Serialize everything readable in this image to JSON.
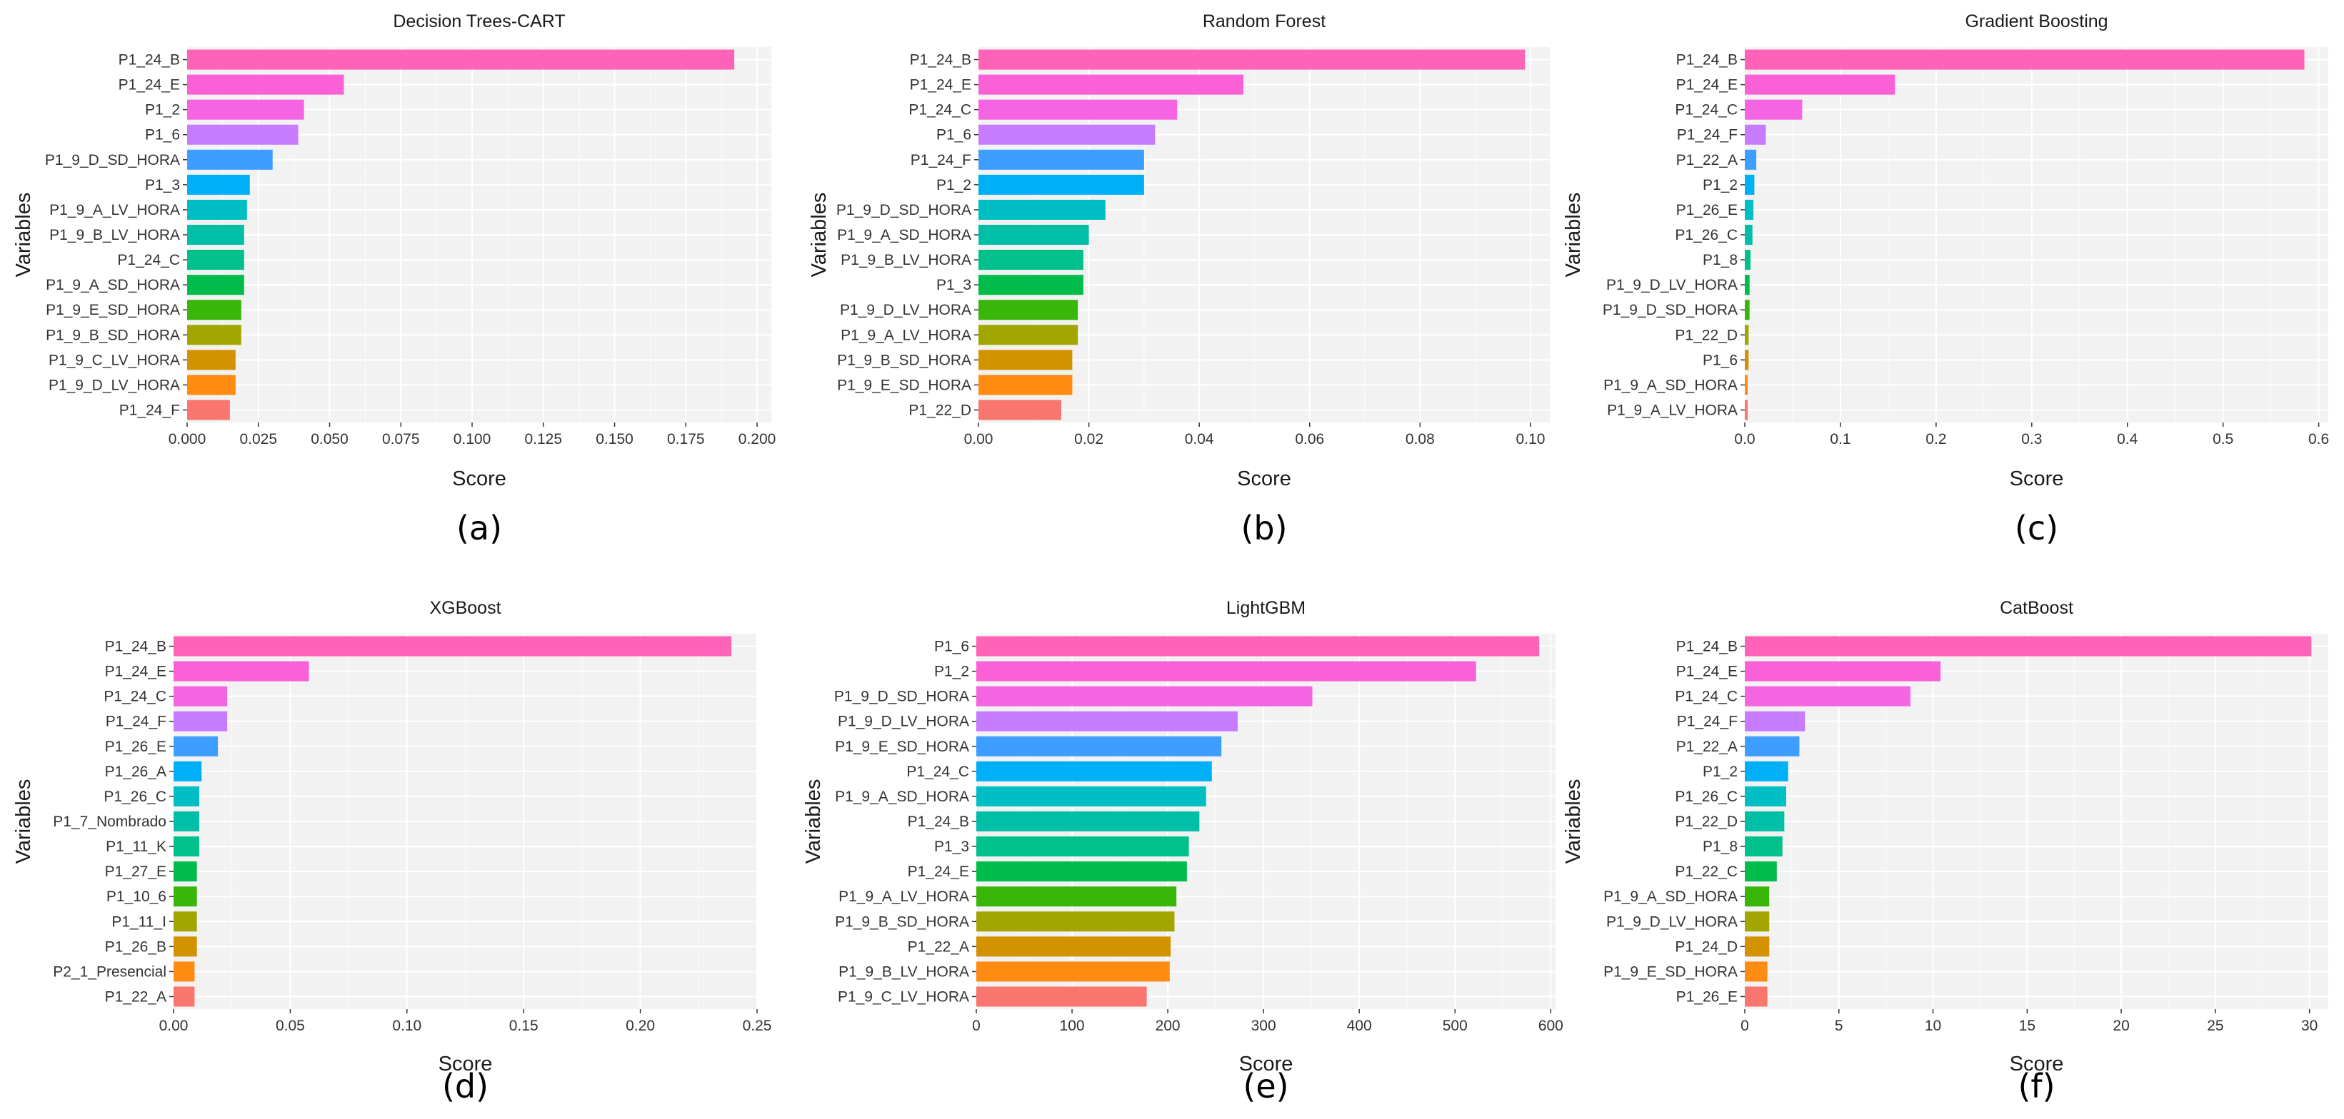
{
  "colors": [
    "#ff63b7",
    "#fb61d7",
    "#f564e3",
    "#c77cff",
    "#3e9eff",
    "#00b0f6",
    "#00bfc4",
    "#00bfa6",
    "#00c08b",
    "#00bc4a",
    "#3ab60b",
    "#a3a500",
    "#d39200",
    "#ff8b13",
    "#f8766d"
  ],
  "chart_data": [
    {
      "type": "bar",
      "orientation": "horizontal",
      "title": "Decision Trees-CART",
      "panel_label": "(a)",
      "xlabel": "Score",
      "ylabel": "Variables",
      "xlim": [
        0,
        0.205
      ],
      "xticks": [
        0,
        0.025,
        0.05,
        0.075,
        0.1,
        0.125,
        0.15,
        0.175,
        0.2
      ],
      "xtick_labels": [
        "0.000",
        "0.025",
        "0.050",
        "0.075",
        "0.100",
        "0.125",
        "0.150",
        "0.175",
        "0.200"
      ],
      "categories": [
        "P1_24_B",
        "P1_24_E",
        "P1_2",
        "P1_6",
        "P1_9_D_SD_HORA",
        "P1_3",
        "P1_9_A_LV_HORA",
        "P1_9_B_LV_HORA",
        "P1_24_C",
        "P1_9_A_SD_HORA",
        "P1_9_E_SD_HORA",
        "P1_9_B_SD_HORA",
        "P1_9_C_LV_HORA",
        "P1_9_D_LV_HORA",
        "P1_24_F"
      ],
      "values": [
        0.192,
        0.055,
        0.041,
        0.039,
        0.03,
        0.022,
        0.021,
        0.02,
        0.02,
        0.02,
        0.019,
        0.019,
        0.017,
        0.017,
        0.015
      ]
    },
    {
      "type": "bar",
      "orientation": "horizontal",
      "title": "Random Forest",
      "panel_label": "(b)",
      "xlabel": "Score",
      "ylabel": "Variables",
      "xlim": [
        0,
        0.1035
      ],
      "xticks": [
        0,
        0.02,
        0.04,
        0.06,
        0.08,
        0.1
      ],
      "xtick_labels": [
        "0.00",
        "0.02",
        "0.04",
        "0.06",
        "0.08",
        "0.10"
      ],
      "categories": [
        "P1_24_B",
        "P1_24_E",
        "P1_24_C",
        "P1_6",
        "P1_24_F",
        "P1_2",
        "P1_9_D_SD_HORA",
        "P1_9_A_SD_HORA",
        "P1_9_B_LV_HORA",
        "P1_3",
        "P1_9_D_LV_HORA",
        "P1_9_A_LV_HORA",
        "P1_9_B_SD_HORA",
        "P1_9_E_SD_HORA",
        "P1_22_D"
      ],
      "values": [
        0.099,
        0.048,
        0.036,
        0.032,
        0.03,
        0.03,
        0.023,
        0.02,
        0.019,
        0.019,
        0.018,
        0.018,
        0.017,
        0.017,
        0.015
      ]
    },
    {
      "type": "bar",
      "orientation": "horizontal",
      "title": "Gradient Boosting",
      "panel_label": "(c)",
      "xlabel": "Score",
      "ylabel": "Variables",
      "xlim": [
        0,
        0.61
      ],
      "xticks": [
        0,
        0.1,
        0.2,
        0.3,
        0.4,
        0.5,
        0.6
      ],
      "xtick_labels": [
        "0.0",
        "0.1",
        "0.2",
        "0.3",
        "0.4",
        "0.5",
        "0.6"
      ],
      "categories": [
        "P1_24_B",
        "P1_24_E",
        "P1_24_C",
        "P1_24_F",
        "P1_22_A",
        "P1_2",
        "P1_26_E",
        "P1_26_C",
        "P1_8",
        "P1_9_D_LV_HORA",
        "P1_9_D_SD_HORA",
        "P1_22_D",
        "P1_6",
        "P1_9_A_SD_HORA",
        "P1_9_A_LV_HORA"
      ],
      "values": [
        0.585,
        0.157,
        0.06,
        0.022,
        0.012,
        0.01,
        0.009,
        0.008,
        0.006,
        0.005,
        0.005,
        0.004,
        0.004,
        0.003,
        0.003
      ]
    },
    {
      "type": "bar",
      "orientation": "horizontal",
      "title": "XGBoost",
      "panel_label": "(d)",
      "xlabel": "Score",
      "ylabel": "Variables",
      "xlim": [
        0,
        0.25
      ],
      "xticks": [
        0,
        0.05,
        0.1,
        0.15,
        0.2,
        0.25
      ],
      "xtick_labels": [
        "0.00",
        "0.05",
        "0.10",
        "0.15",
        "0.20",
        "0.25"
      ],
      "categories": [
        "P1_24_B",
        "P1_24_E",
        "P1_24_C",
        "P1_24_F",
        "P1_26_E",
        "P1_26_A",
        "P1_26_C",
        "P1_7_Nombrado",
        "P1_11_K",
        "P1_27_E",
        "P1_10_6",
        "P1_11_I",
        "P1_26_B",
        "P2_1_Presencial",
        "P1_22_A"
      ],
      "values": [
        0.239,
        0.058,
        0.023,
        0.023,
        0.019,
        0.012,
        0.011,
        0.011,
        0.011,
        0.01,
        0.01,
        0.01,
        0.01,
        0.009,
        0.009
      ]
    },
    {
      "type": "bar",
      "orientation": "horizontal",
      "title": "LightGBM",
      "panel_label": "(e)",
      "xlabel": "Score",
      "ylabel": "Variables",
      "xlim": [
        0,
        605
      ],
      "xticks": [
        0,
        100,
        200,
        300,
        400,
        500,
        600
      ],
      "xtick_labels": [
        "0",
        "100",
        "200",
        "300",
        "400",
        "500",
        "600"
      ],
      "categories": [
        "P1_6",
        "P1_2",
        "P1_9_D_SD_HORA",
        "P1_9_D_LV_HORA",
        "P1_9_E_SD_HORA",
        "P1_24_C",
        "P1_9_A_SD_HORA",
        "P1_24_B",
        "P1_3",
        "P1_24_E",
        "P1_9_A_LV_HORA",
        "P1_9_B_SD_HORA",
        "P1_22_A",
        "P1_9_B_LV_HORA",
        "P1_9_C_LV_HORA"
      ],
      "values": [
        588,
        522,
        351,
        273,
        256,
        246,
        240,
        233,
        222,
        220,
        209,
        207,
        203,
        202,
        178
      ]
    },
    {
      "type": "bar",
      "orientation": "horizontal",
      "title": "CatBoost",
      "panel_label": "(f)",
      "xlabel": "Score",
      "ylabel": "Variables",
      "xlim": [
        0,
        31
      ],
      "xticks": [
        0,
        5,
        10,
        15,
        20,
        25,
        30
      ],
      "xtick_labels": [
        "0",
        "5",
        "10",
        "15",
        "20",
        "25",
        "30"
      ],
      "categories": [
        "P1_24_B",
        "P1_24_E",
        "P1_24_C",
        "P1_24_F",
        "P1_22_A",
        "P1_2",
        "P1_26_C",
        "P1_22_D",
        "P1_8",
        "P1_22_C",
        "P1_9_A_SD_HORA",
        "P1_9_D_LV_HORA",
        "P1_24_D",
        "P1_9_E_SD_HORA",
        "P1_26_E"
      ],
      "values": [
        30.1,
        10.4,
        8.8,
        3.2,
        2.9,
        2.3,
        2.2,
        2.1,
        2.0,
        1.7,
        1.3,
        1.3,
        1.3,
        1.2,
        1.2
      ]
    }
  ]
}
